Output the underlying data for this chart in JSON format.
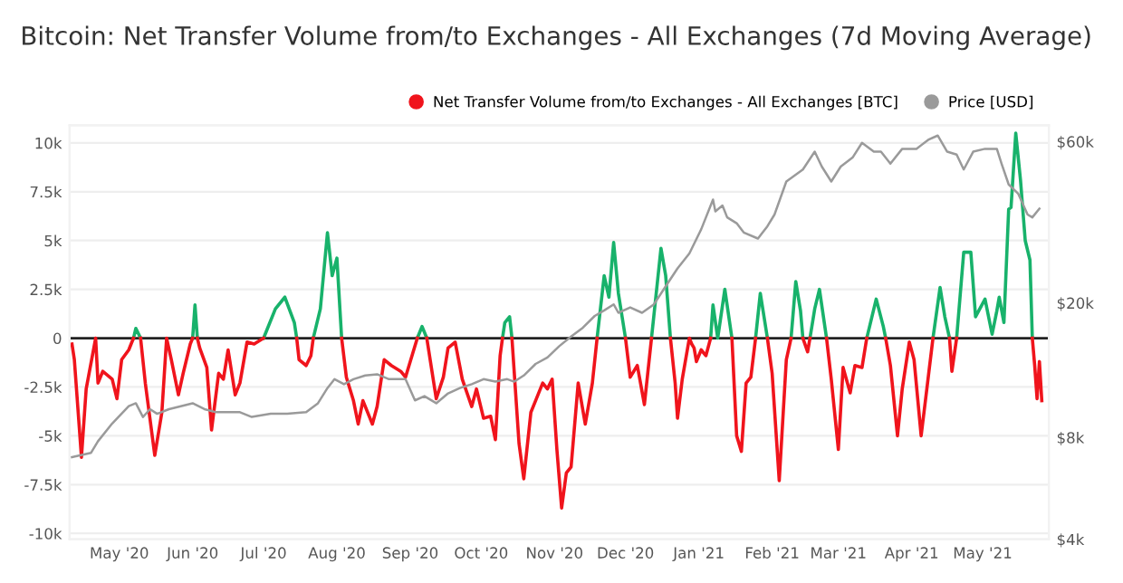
{
  "chart_data": {
    "type": "line",
    "title": "Bitcoin: Net Transfer Volume from/to Exchanges - All Exchanges (7d Moving Average)",
    "x": [
      "2020-04-11",
      "2020-04-12",
      "2020-04-15",
      "2020-04-17",
      "2020-04-21",
      "2020-04-22",
      "2020-04-24",
      "2020-04-28",
      "2020-04-30",
      "2020-05-02",
      "2020-05-05",
      "2020-05-07",
      "2020-05-08",
      "2020-05-10",
      "2020-05-12",
      "2020-05-16",
      "2020-05-19",
      "2020-05-21",
      "2020-05-23",
      "2020-05-26",
      "2020-05-28",
      "2020-05-31",
      "2020-06-01",
      "2020-06-02",
      "2020-06-03",
      "2020-06-04",
      "2020-06-07",
      "2020-06-09",
      "2020-06-12",
      "2020-06-14",
      "2020-06-16",
      "2020-06-19",
      "2020-06-21",
      "2020-06-24",
      "2020-06-27",
      "2020-07-01",
      "2020-07-06",
      "2020-07-10",
      "2020-07-14",
      "2020-07-15",
      "2020-07-16",
      "2020-07-19",
      "2020-07-21",
      "2020-07-22",
      "2020-07-25",
      "2020-07-28",
      "2020-07-30",
      "2020-08-01",
      "2020-08-03",
      "2020-08-05",
      "2020-08-08",
      "2020-08-10",
      "2020-08-12",
      "2020-08-16",
      "2020-08-18",
      "2020-08-21",
      "2020-08-24",
      "2020-08-28",
      "2020-08-30",
      "2020-09-02",
      "2020-09-04",
      "2020-09-06",
      "2020-09-08",
      "2020-09-12",
      "2020-09-15",
      "2020-09-17",
      "2020-09-20",
      "2020-09-23",
      "2020-09-27",
      "2020-09-29",
      "2020-10-02",
      "2020-10-05",
      "2020-10-07",
      "2020-10-09",
      "2020-10-10",
      "2020-10-11",
      "2020-10-13",
      "2020-10-14",
      "2020-10-17",
      "2020-10-19",
      "2020-10-22",
      "2020-10-24",
      "2020-10-27",
      "2020-10-29",
      "2020-10-31",
      "2020-11-02",
      "2020-11-04",
      "2020-11-06",
      "2020-11-08",
      "2020-11-11",
      "2020-11-14",
      "2020-11-17",
      "2020-11-19",
      "2020-11-22",
      "2020-11-24",
      "2020-11-26",
      "2020-11-28",
      "2020-12-01",
      "2020-12-03",
      "2020-12-06",
      "2020-12-09",
      "2020-12-12",
      "2020-12-16",
      "2020-12-18",
      "2020-12-20",
      "2020-12-22",
      "2020-12-23",
      "2020-12-25",
      "2020-12-28",
      "2020-12-29",
      "2020-12-30",
      "2020-12-31",
      "2021-01-02",
      "2021-01-04",
      "2021-01-06",
      "2021-01-07",
      "2021-01-09",
      "2021-01-12",
      "2021-01-15",
      "2021-01-17",
      "2021-01-19",
      "2021-01-21",
      "2021-01-23",
      "2021-01-25",
      "2021-01-27",
      "2021-01-30",
      "2021-02-01",
      "2021-02-04",
      "2021-02-07",
      "2021-02-09",
      "2021-02-11",
      "2021-02-13",
      "2021-02-14",
      "2021-02-16",
      "2021-02-17",
      "2021-02-19",
      "2021-02-21",
      "2021-02-24",
      "2021-02-26",
      "2021-03-01",
      "2021-03-03",
      "2021-03-06",
      "2021-03-08",
      "2021-03-11",
      "2021-03-13",
      "2021-03-17",
      "2021-03-20",
      "2021-03-21",
      "2021-03-23",
      "2021-03-26",
      "2021-03-28",
      "2021-03-31",
      "2021-04-02",
      "2021-04-05",
      "2021-04-08",
      "2021-04-10",
      "2021-04-13",
      "2021-04-15",
      "2021-04-17",
      "2021-04-18",
      "2021-04-20",
      "2021-04-23",
      "2021-04-26",
      "2021-04-28",
      "2021-05-02",
      "2021-05-05",
      "2021-05-07",
      "2021-05-08",
      "2021-05-10",
      "2021-05-12",
      "2021-05-13",
      "2021-05-15",
      "2021-05-17",
      "2021-05-19",
      "2021-05-21",
      "2021-05-22",
      "2021-05-23",
      "2021-05-24",
      "2021-05-25",
      "2021-05-26"
    ],
    "series": [
      {
        "name": "Net Transfer Volume from/to Exchanges - All Exchanges [BTC]",
        "color": "#f0141c",
        "values": [
          -300,
          -1100,
          -6100,
          -2600,
          0,
          -2300,
          -1700,
          -2100,
          -3100,
          -1100,
          -600,
          0,
          null,
          0,
          -2300,
          -6000,
          -3800,
          0,
          -1100,
          -2900,
          -1800,
          -300,
          0,
          null,
          0,
          -500,
          -1500,
          -4700,
          -1800,
          -2100,
          -600,
          -2900,
          -2300,
          -200,
          -300,
          0,
          null,
          null,
          null,
          0,
          -1100,
          -1400,
          -900,
          0,
          null,
          null,
          null,
          null,
          0,
          -2000,
          -3200,
          -4400,
          -3200,
          -4400,
          -3500,
          -1100,
          -1400,
          -1700,
          -2000,
          -800,
          0,
          null,
          0,
          -3100,
          -2000,
          -500,
          -200,
          -2100,
          -3500,
          -2600,
          -4100,
          -4000,
          -5200,
          -900,
          0,
          null,
          null,
          0,
          -5400,
          -7200,
          -3800,
          -3200,
          -2300,
          -2600,
          -2100,
          -5700,
          -8700,
          -6900,
          -6600,
          -2300,
          -4400,
          -2300,
          0,
          null,
          null,
          null,
          null,
          0,
          -2000,
          -1400,
          -3400,
          0,
          null,
          null,
          0,
          -2300,
          -4100,
          -2100,
          0,
          -300,
          -500,
          -1200,
          -600,
          -900,
          0,
          null,
          null,
          null,
          0,
          -5000,
          -5800,
          -2300,
          -2000,
          0,
          null,
          0,
          -1800,
          -7300,
          -1100,
          0,
          null,
          null,
          0,
          -700,
          0,
          null,
          null,
          0,
          -2100,
          -5700,
          -1500,
          -2800,
          -1400,
          -1500,
          0,
          null,
          null,
          0,
          -1400,
          -5000,
          -2600,
          -200,
          -1100,
          -5000,
          -2000,
          0,
          null,
          null,
          0,
          -1700,
          0,
          null,
          null,
          null,
          null,
          null,
          null,
          null,
          null,
          null,
          null,
          null,
          null,
          null,
          null,
          0,
          -1400,
          -3100,
          -1200,
          -3200
        ]
      },
      {
        "color": "#18b26b",
        "values": [
          null,
          null,
          null,
          null,
          null,
          null,
          null,
          null,
          null,
          null,
          null,
          0,
          500,
          0,
          null,
          null,
          null,
          null,
          null,
          null,
          null,
          null,
          0,
          1700,
          0,
          null,
          null,
          null,
          null,
          null,
          null,
          null,
          null,
          null,
          null,
          0,
          1500,
          2100,
          800,
          0,
          null,
          null,
          null,
          0,
          1500,
          5400,
          3200,
          4100,
          0,
          null,
          null,
          null,
          null,
          null,
          null,
          null,
          null,
          null,
          null,
          null,
          0,
          600,
          0,
          null,
          null,
          null,
          null,
          null,
          null,
          null,
          null,
          null,
          null,
          null,
          0,
          800,
          1100,
          0,
          null,
          null,
          null,
          null,
          null,
          null,
          null,
          null,
          null,
          null,
          null,
          null,
          null,
          null,
          0,
          3200,
          2100,
          4900,
          2300,
          0,
          null,
          null,
          null,
          0,
          4600,
          3200,
          0,
          null,
          null,
          null,
          null,
          null,
          null,
          null,
          null,
          null,
          0,
          1700,
          0,
          2500,
          0,
          null,
          null,
          null,
          null,
          0,
          2300,
          0,
          null,
          null,
          null,
          0,
          2900,
          1400,
          0,
          null,
          0,
          1500,
          2500,
          0,
          null,
          null,
          null,
          null,
          null,
          null,
          0,
          2000,
          600,
          0,
          null,
          null,
          null,
          null,
          null,
          null,
          null,
          0,
          2600,
          1100,
          0,
          null,
          0,
          4400,
          4400,
          1100,
          2000,
          200,
          1400,
          2100,
          800,
          6600,
          6700,
          10500,
          8100,
          5000,
          4000,
          0,
          null,
          null,
          null,
          null
        ]
      },
      {
        "name": "Price [USD]",
        "color": "#9a9a9a",
        "axis": "y2",
        "x": [
          "2020-04-11",
          "2020-04-19",
          "2020-04-22",
          "2020-04-28",
          "2020-05-05",
          "2020-05-08",
          "2020-05-11",
          "2020-05-14",
          "2020-05-17",
          "2020-05-22",
          "2020-05-27",
          "2020-06-01",
          "2020-06-06",
          "2020-06-11",
          "2020-06-21",
          "2020-06-26",
          "2020-07-04",
          "2020-07-11",
          "2020-07-19",
          "2020-07-24",
          "2020-07-28",
          "2020-07-31",
          "2020-08-04",
          "2020-08-08",
          "2020-08-13",
          "2020-08-18",
          "2020-08-23",
          "2020-08-30",
          "2020-09-03",
          "2020-09-07",
          "2020-09-12",
          "2020-09-17",
          "2020-09-22",
          "2020-09-27",
          "2020-10-02",
          "2020-10-07",
          "2020-10-12",
          "2020-10-15",
          "2020-10-19",
          "2020-10-24",
          "2020-10-29",
          "2020-11-03",
          "2020-11-08",
          "2020-11-13",
          "2020-11-18",
          "2020-11-22",
          "2020-11-26",
          "2020-11-28",
          "2020-12-03",
          "2020-12-08",
          "2020-12-13",
          "2020-12-18",
          "2020-12-23",
          "2020-12-28",
          "2021-01-02",
          "2021-01-07",
          "2021-01-08",
          "2021-01-11",
          "2021-01-13",
          "2021-01-17",
          "2021-01-20",
          "2021-01-26",
          "2021-01-30",
          "2021-02-02",
          "2021-02-07",
          "2021-02-14",
          "2021-02-19",
          "2021-02-22",
          "2021-02-26",
          "2021-03-02",
          "2021-03-07",
          "2021-03-11",
          "2021-03-16",
          "2021-03-19",
          "2021-03-23",
          "2021-03-28",
          "2021-04-03",
          "2021-04-08",
          "2021-04-12",
          "2021-04-16",
          "2021-04-20",
          "2021-04-23",
          "2021-04-27",
          "2021-05-02",
          "2021-05-07",
          "2021-05-09",
          "2021-05-12",
          "2021-05-16",
          "2021-05-20",
          "2021-05-22",
          "2021-05-25"
        ],
        "values": [
          7000,
          7200,
          7800,
          8800,
          9900,
          10100,
          9200,
          9700,
          9400,
          9700,
          9900,
          10100,
          9700,
          9500,
          9500,
          9200,
          9400,
          9400,
          9500,
          10100,
          11200,
          11900,
          11500,
          11900,
          12200,
          12300,
          11900,
          11900,
          10300,
          10600,
          10100,
          10800,
          11200,
          11500,
          11900,
          11700,
          11900,
          11700,
          12200,
          13200,
          13800,
          14900,
          15900,
          16900,
          18300,
          19000,
          19800,
          18700,
          19400,
          18700,
          19800,
          22400,
          25300,
          28000,
          33000,
          40400,
          37300,
          38800,
          35800,
          34400,
          32300,
          31000,
          33700,
          36500,
          45700,
          49600,
          56000,
          50600,
          45700,
          50600,
          53800,
          59500,
          56000,
          56000,
          51600,
          57100,
          57100,
          60700,
          62500,
          56000,
          54900,
          49600,
          56000,
          57100,
          57100,
          51600,
          44800,
          42100,
          36500,
          35800,
          38000
        ]
      }
    ],
    "xlim": [
      "2020-04-10",
      "2021-05-29"
    ],
    "xticks": [
      {
        "value": "2020-05-01",
        "label": "May '20"
      },
      {
        "value": "2020-06-01",
        "label": "Jun '20"
      },
      {
        "value": "2020-07-01",
        "label": "Jul '20"
      },
      {
        "value": "2020-08-01",
        "label": "Aug '20"
      },
      {
        "value": "2020-09-01",
        "label": "Sep '20"
      },
      {
        "value": "2020-10-01",
        "label": "Oct '20"
      },
      {
        "value": "2020-11-01",
        "label": "Nov '20"
      },
      {
        "value": "2020-12-01",
        "label": "Dec '20"
      },
      {
        "value": "2021-01-01",
        "label": "Jan '21"
      },
      {
        "value": "2021-02-01",
        "label": "Feb '21"
      },
      {
        "value": "2021-03-01",
        "label": "Mar '21"
      },
      {
        "value": "2021-04-01",
        "label": "Apr '21"
      },
      {
        "value": "2021-05-01",
        "label": "May '21"
      }
    ],
    "ylim": [
      -10300,
      10900
    ],
    "yticks": [
      {
        "value": -10000,
        "label": "-10k"
      },
      {
        "value": -7500,
        "label": "-7.5k"
      },
      {
        "value": -5000,
        "label": "-5k"
      },
      {
        "value": -2500,
        "label": "-2.5k"
      },
      0,
      {
        "value": 2500,
        "label": "2.5k"
      },
      {
        "value": 5000,
        "label": "5k"
      },
      {
        "value": 7500,
        "label": "7.5k"
      },
      {
        "value": 10000,
        "label": "10k"
      }
    ],
    "log": "y2",
    "y2lim": [
      4000,
      67000
    ],
    "y2ticks": [
      {
        "value": 4000,
        "label": "$4k"
      },
      {
        "value": 8000,
        "label": "$8k"
      },
      {
        "value": 20000,
        "label": "$20k"
      },
      {
        "value": 60000,
        "label": "$60k"
      }
    ],
    "ref_lines": [
      {
        "axis": "y",
        "value": 0,
        "color": "#222222"
      }
    ],
    "grid": "y",
    "legend": "top right"
  }
}
